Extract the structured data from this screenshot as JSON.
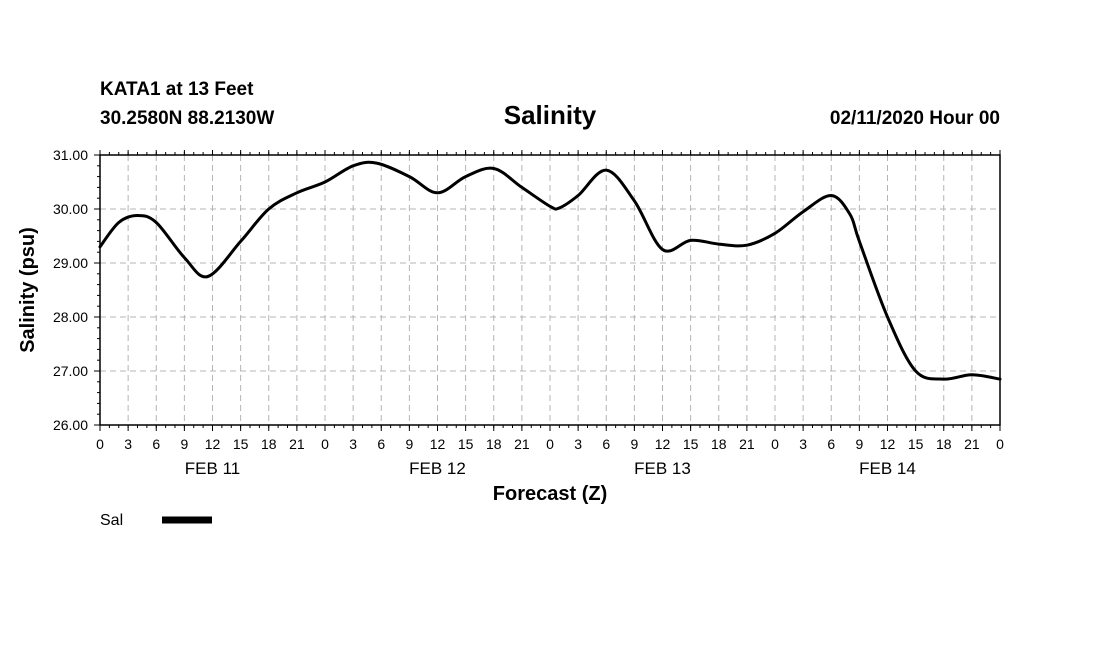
{
  "header": {
    "station_line": "KATA1 at 13 Feet",
    "coords_line": "30.2580N 88.2130W",
    "title": "Salinity",
    "date_line": "02/11/2020 Hour 00"
  },
  "chart_data": {
    "type": "line",
    "title": "Salinity",
    "xlabel": "Forecast (Z)",
    "ylabel": "Salinity (psu)",
    "xlim": [
      0,
      96
    ],
    "ylim": [
      26,
      31
    ],
    "y_ticks": [
      "26.00",
      "27.00",
      "28.00",
      "29.00",
      "30.00",
      "31.00"
    ],
    "x_tick_labels": [
      "0",
      "3",
      "6",
      "9",
      "12",
      "15",
      "18",
      "21",
      "0",
      "3",
      "6",
      "9",
      "12",
      "15",
      "18",
      "21",
      "0",
      "3",
      "6",
      "9",
      "12",
      "15",
      "18",
      "21",
      "0",
      "3",
      "6",
      "9",
      "12",
      "15",
      "18",
      "21",
      "0"
    ],
    "day_labels": [
      {
        "label": "FEB 11",
        "hour": 12
      },
      {
        "label": "FEB 12",
        "hour": 36
      },
      {
        "label": "FEB 13",
        "hour": 60
      },
      {
        "label": "FEB 14",
        "hour": 84
      }
    ],
    "grid": true,
    "colors": {
      "line": "#000000",
      "grid": "#b4b4b4"
    },
    "series": [
      {
        "name": "Sal",
        "x": [
          0,
          2,
          4,
          6,
          9,
          11.5,
          15,
          18,
          21,
          24,
          27,
          29.5,
          33,
          36,
          39,
          42,
          45,
          48,
          49,
          51,
          54,
          57,
          60,
          63,
          66,
          69,
          72,
          75,
          78,
          80,
          81,
          84,
          87,
          90,
          93,
          96
        ],
        "y": [
          29.3,
          29.75,
          29.88,
          29.75,
          29.1,
          28.75,
          29.4,
          30.0,
          30.3,
          30.5,
          30.8,
          30.85,
          30.6,
          30.3,
          30.6,
          30.75,
          30.4,
          30.05,
          30.02,
          30.25,
          30.72,
          30.15,
          29.25,
          29.42,
          29.35,
          29.33,
          29.55,
          29.95,
          30.25,
          29.9,
          29.4,
          28.0,
          27.0,
          26.85,
          26.93,
          26.85
        ]
      }
    ],
    "legend": {
      "position": "bottom-left",
      "label": "Sal"
    }
  }
}
